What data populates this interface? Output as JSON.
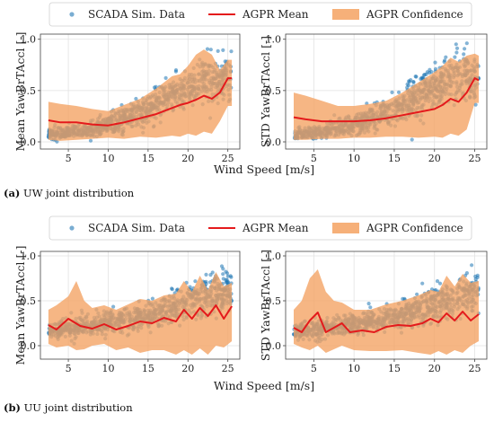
{
  "legend": {
    "scatter_label": "SCADA Sim. Data",
    "mean_label": "AGPR Mean",
    "confidence_label": "AGPR Confidence"
  },
  "captions": [
    {
      "tag": "(a)",
      "text": "UW joint distribution"
    },
    {
      "tag": "(b)",
      "text": "UU joint distribution"
    }
  ],
  "colors": {
    "scatter": "#1f77b4",
    "mean": "#e41a1c",
    "confidence": "#f4a261"
  },
  "chart_data": [
    {
      "id": "uw-mean",
      "type": "scatter",
      "ylabel": "Mean YawBrTAccl [-]",
      "xlabel": "",
      "xlim": [
        1.5,
        26.5
      ],
      "ylim": [
        -0.07,
        1.05
      ],
      "xticks": [
        5,
        10,
        15,
        20,
        25
      ],
      "yticks": [
        0.0,
        0.5,
        1.0
      ],
      "grid": true,
      "mean": {
        "x": [
          2.5,
          4,
          6,
          8,
          10,
          12,
          14,
          15,
          16,
          17,
          18,
          19,
          20,
          21,
          22,
          23,
          24,
          25,
          25.5
        ],
        "y": [
          0.21,
          0.19,
          0.19,
          0.17,
          0.16,
          0.19,
          0.23,
          0.25,
          0.27,
          0.3,
          0.33,
          0.36,
          0.38,
          0.41,
          0.45,
          0.42,
          0.48,
          0.62,
          0.62
        ]
      },
      "band": {
        "x": [
          2.5,
          4,
          6,
          8,
          10,
          12,
          14,
          16,
          18,
          19,
          20,
          21,
          22,
          23,
          24,
          25,
          25.5
        ],
        "upper": [
          0.39,
          0.37,
          0.35,
          0.32,
          0.3,
          0.36,
          0.42,
          0.52,
          0.64,
          0.66,
          0.74,
          0.85,
          0.9,
          0.85,
          0.7,
          0.8,
          0.8
        ],
        "lower": [
          0.02,
          0.01,
          0.02,
          0.03,
          0.04,
          0.03,
          0.05,
          0.04,
          0.06,
          0.05,
          0.08,
          0.06,
          0.1,
          0.08,
          0.2,
          0.35,
          0.35
        ]
      },
      "cloud": {
        "x": [
          2.5,
          6,
          10,
          14,
          16,
          18,
          20,
          22,
          24,
          25.5
        ],
        "center": [
          0.07,
          0.1,
          0.16,
          0.28,
          0.36,
          0.46,
          0.54,
          0.6,
          0.6,
          0.62
        ],
        "spread": [
          0.06,
          0.07,
          0.1,
          0.14,
          0.16,
          0.18,
          0.2,
          0.22,
          0.22,
          0.24
        ]
      }
    },
    {
      "id": "uw-std",
      "type": "scatter",
      "ylabel": "STD YawBrTAccl [-]",
      "xlabel": "",
      "xlim": [
        1.5,
        26.5
      ],
      "ylim": [
        -0.07,
        1.05
      ],
      "xticks": [
        5,
        10,
        15,
        20,
        25
      ],
      "yticks": [
        0.0,
        0.5,
        1.0
      ],
      "grid": true,
      "mean": {
        "x": [
          2.5,
          4,
          6,
          8,
          10,
          12,
          14,
          16,
          18,
          20,
          21,
          22,
          23,
          24,
          25,
          25.5
        ],
        "y": [
          0.24,
          0.22,
          0.2,
          0.2,
          0.2,
          0.21,
          0.23,
          0.26,
          0.29,
          0.32,
          0.36,
          0.42,
          0.39,
          0.48,
          0.62,
          0.6
        ]
      },
      "band": {
        "x": [
          2.5,
          4,
          6,
          8,
          10,
          12,
          14,
          16,
          18,
          20,
          21,
          22,
          23,
          24,
          25,
          25.5
        ],
        "upper": [
          0.48,
          0.45,
          0.4,
          0.35,
          0.35,
          0.37,
          0.4,
          0.48,
          0.58,
          0.68,
          0.74,
          0.82,
          0.78,
          0.84,
          0.86,
          0.84
        ],
        "lower": [
          0.02,
          0.02,
          0.03,
          0.03,
          0.04,
          0.04,
          0.05,
          0.05,
          0.04,
          0.05,
          0.04,
          0.08,
          0.06,
          0.12,
          0.38,
          0.38
        ]
      },
      "cloud": {
        "x": [
          2.5,
          6,
          10,
          14,
          16,
          18,
          20,
          22,
          24,
          25.5
        ],
        "center": [
          0.06,
          0.1,
          0.17,
          0.28,
          0.35,
          0.44,
          0.54,
          0.6,
          0.62,
          0.64
        ],
        "spread": [
          0.05,
          0.07,
          0.1,
          0.13,
          0.16,
          0.18,
          0.2,
          0.22,
          0.22,
          0.24
        ]
      }
    },
    {
      "id": "uu-mean",
      "type": "scatter",
      "ylabel": "Mean YawBrTAccl [-]",
      "xlabel": "",
      "xlim": [
        1.5,
        26.5
      ],
      "ylim": [
        -0.15,
        1.05
      ],
      "xticks": [
        5,
        10,
        15,
        20,
        25
      ],
      "yticks": [
        0.0,
        0.5,
        1.0
      ],
      "grid": true,
      "mean": {
        "x": [
          2.5,
          3.5,
          5,
          6.5,
          8,
          9.5,
          11,
          12.5,
          14,
          15.5,
          17,
          18.5,
          19.5,
          20.5,
          21.5,
          22.5,
          23.5,
          24.5,
          25.5
        ],
        "y": [
          0.23,
          0.18,
          0.3,
          0.22,
          0.19,
          0.24,
          0.18,
          0.22,
          0.27,
          0.25,
          0.31,
          0.27,
          0.4,
          0.3,
          0.42,
          0.33,
          0.45,
          0.3,
          0.44
        ]
      },
      "band": {
        "x": [
          2.5,
          3.5,
          5,
          6,
          7,
          8,
          9.5,
          11,
          12.5,
          14,
          15.5,
          17,
          18.5,
          19.5,
          20.5,
          21.5,
          22.5,
          23.5,
          24.5,
          25.5
        ],
        "upper": [
          0.4,
          0.45,
          0.55,
          0.72,
          0.5,
          0.42,
          0.45,
          0.4,
          0.46,
          0.52,
          0.5,
          0.56,
          0.58,
          0.72,
          0.6,
          0.78,
          0.62,
          0.82,
          0.66,
          0.7
        ],
        "lower": [
          0.02,
          -0.02,
          0.0,
          -0.05,
          -0.04,
          0.0,
          0.02,
          -0.05,
          -0.02,
          -0.08,
          -0.05,
          -0.05,
          -0.1,
          -0.05,
          -0.1,
          -0.03,
          -0.1,
          0.0,
          -0.02,
          0.05
        ]
      },
      "cloud": {
        "x": [
          2.5,
          6,
          10,
          14,
          16,
          18,
          20,
          22,
          24,
          25.5
        ],
        "center": [
          0.16,
          0.2,
          0.26,
          0.32,
          0.36,
          0.42,
          0.48,
          0.54,
          0.58,
          0.6
        ],
        "spread": [
          0.08,
          0.1,
          0.12,
          0.14,
          0.16,
          0.18,
          0.2,
          0.22,
          0.22,
          0.22
        ]
      }
    },
    {
      "id": "uu-std",
      "type": "scatter",
      "ylabel": "STD YawBrTAccl [-]",
      "xlabel": "",
      "xlim": [
        1.5,
        26.5
      ],
      "ylim": [
        -0.15,
        1.05
      ],
      "xticks": [
        5,
        10,
        15,
        20,
        25
      ],
      "yticks": [
        0.0,
        0.5,
        1.0
      ],
      "grid": true,
      "mean": {
        "x": [
          2.5,
          3.5,
          4.5,
          5.5,
          6.5,
          7.5,
          8.5,
          9.5,
          11,
          12.5,
          14,
          15.5,
          17,
          18.5,
          19.5,
          20.5,
          21.5,
          22.5,
          23.5,
          24.5,
          25.5
        ],
        "y": [
          0.2,
          0.15,
          0.28,
          0.37,
          0.15,
          0.2,
          0.25,
          0.15,
          0.17,
          0.15,
          0.21,
          0.23,
          0.22,
          0.25,
          0.3,
          0.26,
          0.36,
          0.28,
          0.38,
          0.28,
          0.35
        ]
      },
      "band": {
        "x": [
          2.5,
          3.5,
          4.5,
          5.5,
          6.5,
          7.5,
          8.5,
          10,
          12,
          14,
          16,
          18,
          19.5,
          20.5,
          21.5,
          22.5,
          23.5,
          24.5,
          25.5
        ],
        "upper": [
          0.4,
          0.5,
          0.75,
          0.85,
          0.6,
          0.5,
          0.48,
          0.4,
          0.4,
          0.46,
          0.5,
          0.56,
          0.62,
          0.6,
          0.78,
          0.66,
          0.8,
          0.7,
          0.72
        ],
        "lower": [
          0.02,
          -0.02,
          -0.05,
          0.0,
          -0.08,
          -0.04,
          0.0,
          -0.05,
          -0.06,
          -0.06,
          -0.05,
          -0.08,
          -0.1,
          -0.06,
          -0.1,
          -0.05,
          -0.08,
          0.0,
          0.05
        ]
      },
      "cloud": {
        "x": [
          2.5,
          6,
          10,
          14,
          16,
          18,
          20,
          22,
          24,
          25.5
        ],
        "center": [
          0.15,
          0.19,
          0.24,
          0.3,
          0.34,
          0.4,
          0.46,
          0.54,
          0.58,
          0.6
        ],
        "spread": [
          0.08,
          0.1,
          0.11,
          0.14,
          0.16,
          0.18,
          0.2,
          0.22,
          0.22,
          0.22
        ]
      }
    }
  ],
  "shared_xlabel": "Wind Speed [m/s]"
}
